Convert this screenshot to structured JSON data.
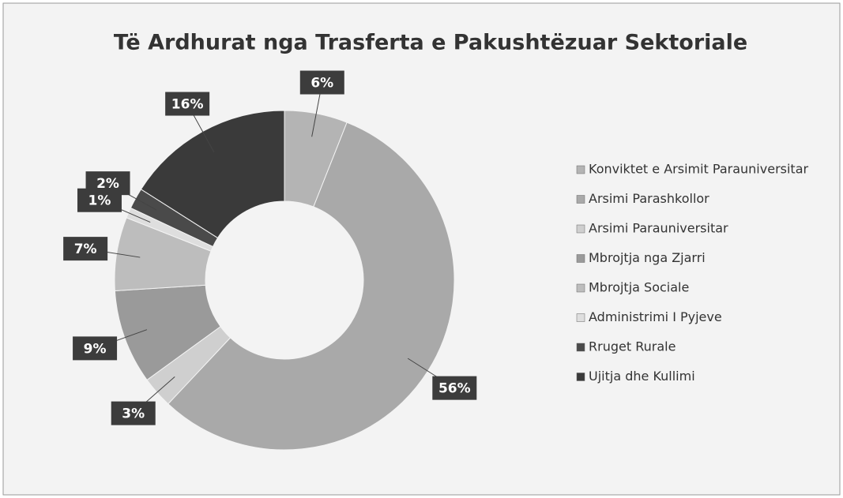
{
  "chart_data": {
    "type": "donut",
    "title": "Të Ardhurat nga Trasferta e Pakushtëzuar Sektoriale",
    "categories": [
      "Konviktet e Arsimit Parauniversitar",
      "Arsimi Parashkollor",
      "Arsimi Parauniversitar",
      "Mbrojtja nga Zjarri",
      "Mbrojtja Sociale",
      "Administrimi I Pyjeve",
      "Rruget Rurale",
      "Ujitja dhe Kullimi"
    ],
    "values": [
      6,
      56,
      3,
      9,
      7,
      1,
      2,
      16
    ],
    "value_labels": [
      "6%",
      "56%",
      "3%",
      "9%",
      "7%",
      "1%",
      "2%",
      "16%"
    ],
    "colors": [
      "#b4b4b4",
      "#a9a9a9",
      "#cfcfcf",
      "#9a9a9a",
      "#bdbdbd",
      "#dedede",
      "#4a4a4a",
      "#3a3a3a"
    ],
    "legend": "right"
  }
}
